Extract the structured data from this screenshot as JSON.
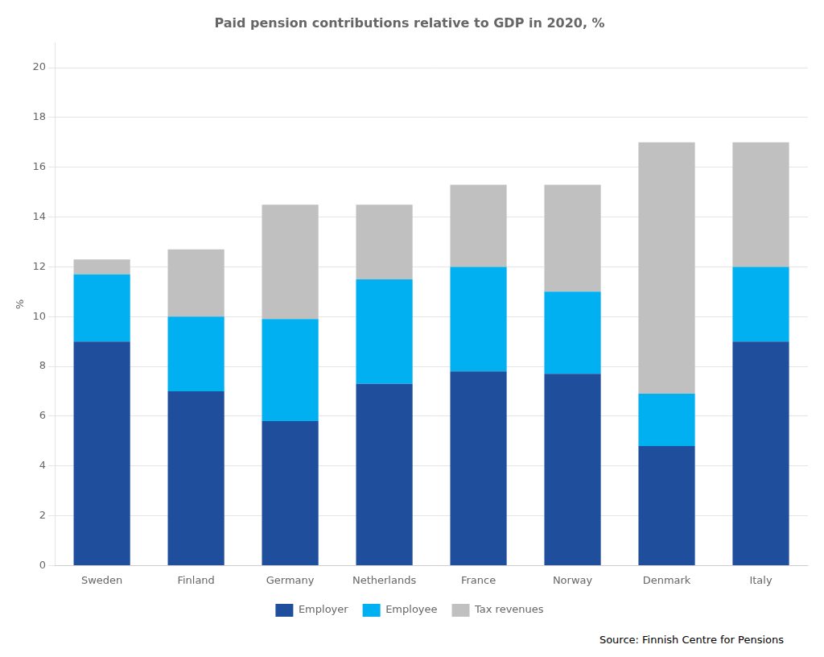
{
  "chart_data": {
    "type": "bar",
    "title": "Paid pension contributions relative to GDP in 2020, %",
    "ylabel": "%",
    "categories": [
      "Sweden",
      "Finland",
      "Germany",
      "Netherlands",
      "France",
      "Norway",
      "Denmark",
      "Italy"
    ],
    "series": [
      {
        "name": "Employer",
        "color": "#1f4e9c",
        "values": [
          9.0,
          7.0,
          5.8,
          7.3,
          7.8,
          7.7,
          4.8,
          9.0
        ]
      },
      {
        "name": "Employee",
        "color": "#00b0f0",
        "values": [
          2.7,
          3.0,
          4.1,
          4.2,
          4.2,
          3.3,
          2.1,
          3.0
        ]
      },
      {
        "name": "Tax revenues",
        "color": "#c0c0c0",
        "values": [
          0.6,
          2.7,
          4.6,
          3.0,
          3.3,
          4.3,
          10.1,
          5.0
        ]
      }
    ],
    "stacked": true,
    "ylim": [
      0,
      21
    ],
    "yticks": [
      0,
      2,
      4,
      6,
      8,
      10,
      12,
      14,
      16,
      18,
      20
    ],
    "grid": true,
    "legend": "bottom",
    "annotations": [
      "Source: Finnish Centre for Pensions"
    ]
  }
}
